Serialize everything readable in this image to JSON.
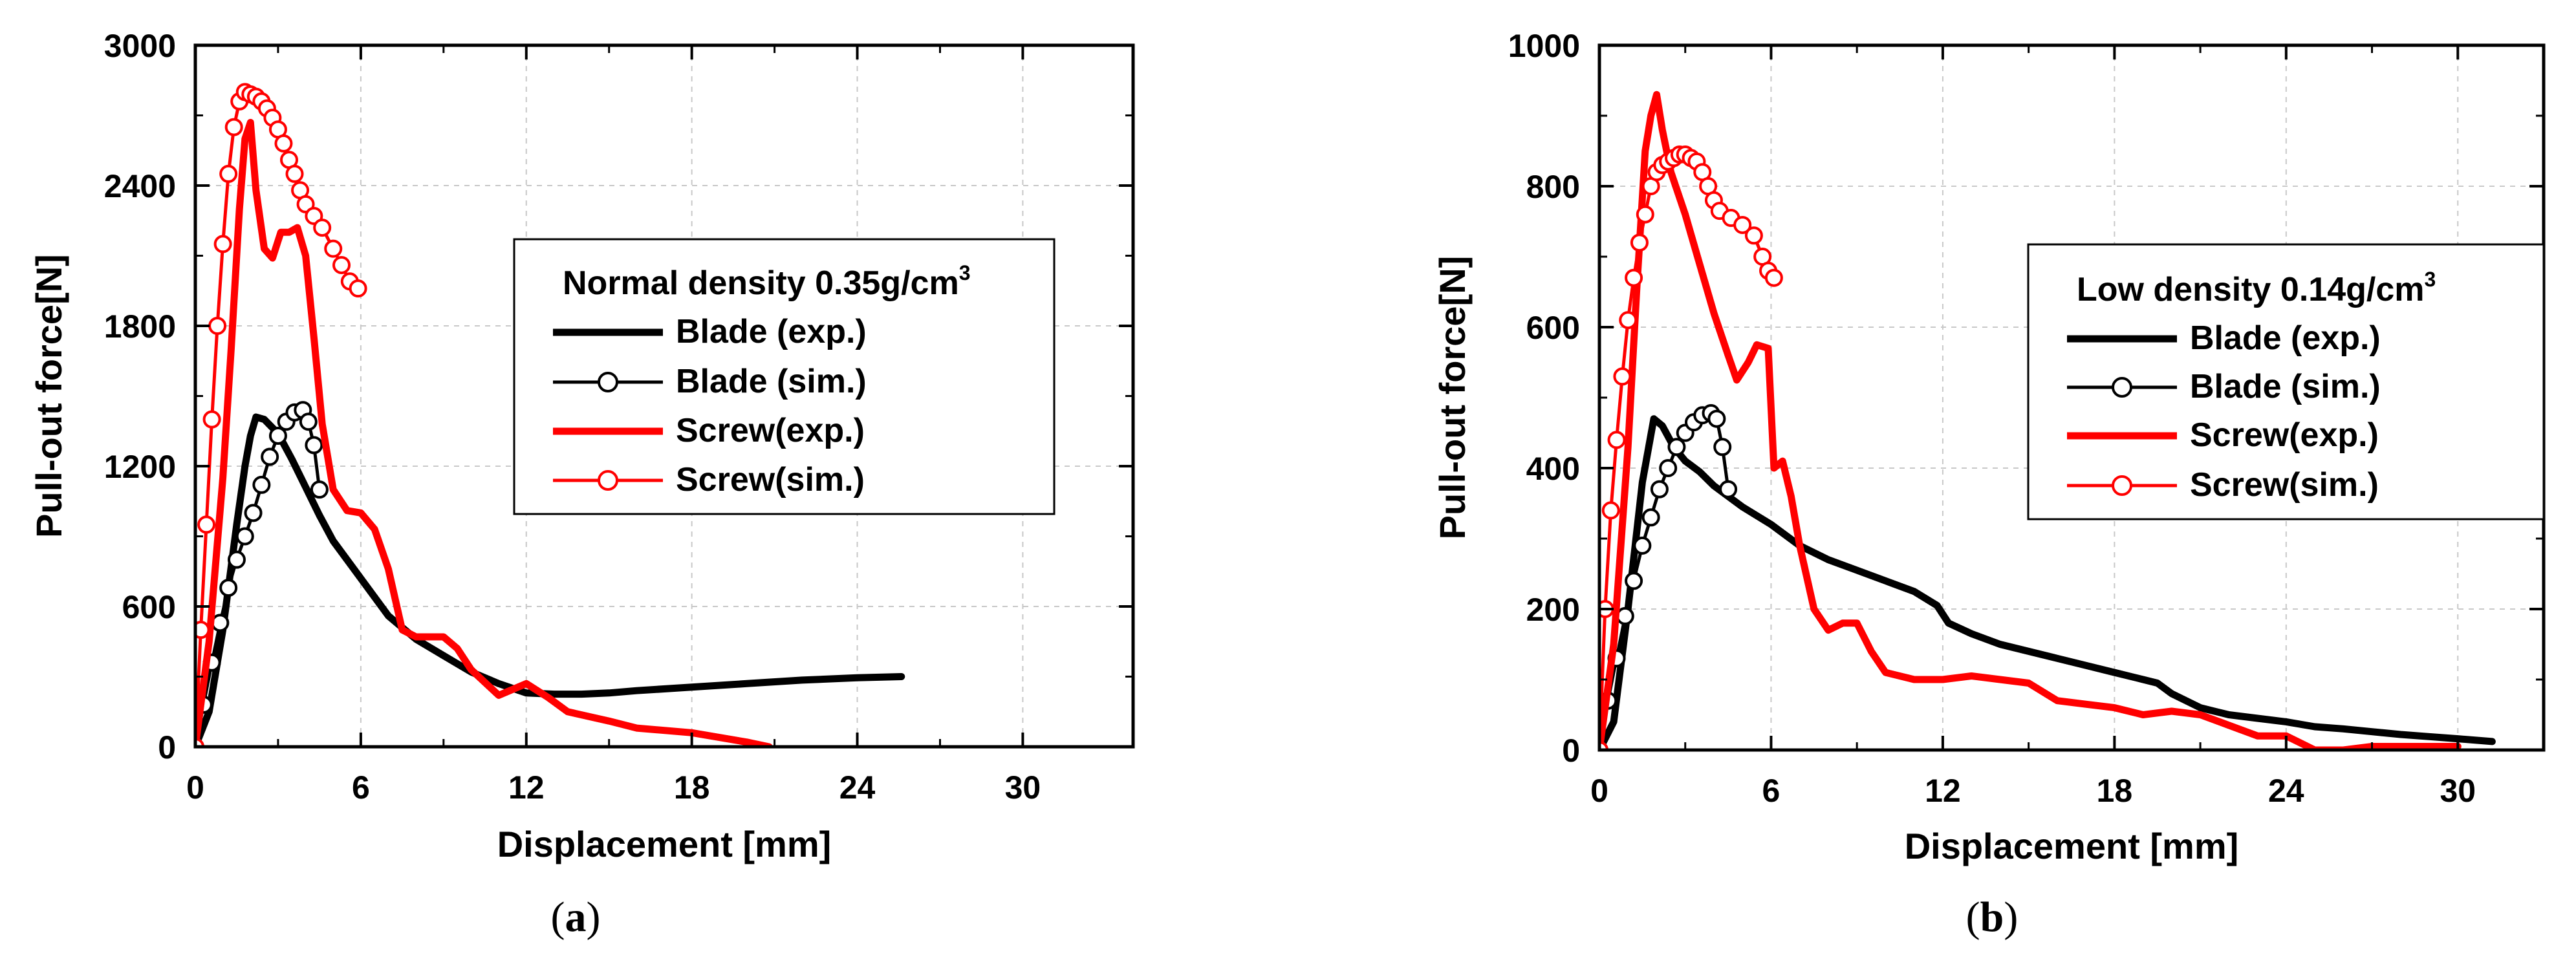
{
  "chart_data": [
    {
      "type": "line",
      "caption_letter": "a",
      "title": "Normal density 0.35g/cm",
      "title_superscript": "3",
      "xlabel": "Displacement [mm]",
      "ylabel": "Pull-out force[N]",
      "xlim": [
        0,
        34
      ],
      "ylim": [
        0,
        3000
      ],
      "xticks": [
        0,
        6,
        12,
        18,
        24,
        30
      ],
      "yticks": [
        0,
        600,
        1200,
        1800,
        2400,
        3000
      ],
      "grid": true,
      "legend_position": "upper-right",
      "series": [
        {
          "name": "Blade (exp.)",
          "color": "#000000",
          "marker": "none",
          "x": [
            0,
            0.5,
            1,
            1.5,
            1.8,
            2,
            2.2,
            2.5,
            3,
            3.5,
            4,
            4.5,
            5,
            6,
            7,
            8,
            9,
            10,
            11,
            12,
            13,
            14,
            15,
            16,
            18,
            20,
            22,
            24,
            25.6
          ],
          "y": [
            0,
            150,
            500,
            950,
            1200,
            1330,
            1410,
            1400,
            1340,
            1230,
            1110,
            990,
            880,
            720,
            560,
            460,
            390,
            320,
            270,
            230,
            225,
            225,
            230,
            240,
            255,
            270,
            285,
            295,
            300
          ]
        },
        {
          "name": "Blade (sim.)",
          "color": "#000000",
          "marker": "circle",
          "x": [
            0,
            0.3,
            0.6,
            0.9,
            1.2,
            1.5,
            1.8,
            2.1,
            2.4,
            2.7,
            3,
            3.3,
            3.6,
            3.9,
            4.1,
            4.3,
            4.5
          ],
          "y": [
            0,
            180,
            360,
            530,
            680,
            800,
            900,
            1000,
            1120,
            1240,
            1330,
            1390,
            1430,
            1440,
            1390,
            1290,
            1100
          ]
        },
        {
          "name": "Screw(exp.)",
          "color": "#ff0000",
          "marker": "none",
          "x": [
            0,
            0.5,
            1,
            1.3,
            1.6,
            1.8,
            2,
            2.2,
            2.5,
            2.8,
            3.1,
            3.4,
            3.7,
            4,
            4.3,
            4.6,
            5,
            5.5,
            6,
            6.5,
            7,
            7.5,
            8,
            9,
            9.5,
            10,
            11,
            12,
            12.8,
            13.5,
            15,
            16,
            18,
            20,
            20.8
          ],
          "y": [
            0,
            450,
            1150,
            1700,
            2300,
            2600,
            2670,
            2380,
            2130,
            2090,
            2200,
            2200,
            2220,
            2100,
            1750,
            1380,
            1100,
            1010,
            1000,
            930,
            760,
            500,
            470,
            470,
            420,
            330,
            220,
            270,
            210,
            150,
            110,
            80,
            60,
            20,
            0
          ]
        },
        {
          "name": "Screw(sim.)",
          "color": "#ff0000",
          "marker": "circle",
          "x": [
            0,
            0.2,
            0.4,
            0.6,
            0.8,
            1,
            1.2,
            1.4,
            1.6,
            1.8,
            2,
            2.2,
            2.4,
            2.6,
            2.8,
            3,
            3.2,
            3.4,
            3.6,
            3.8,
            4,
            4.3,
            4.6,
            5,
            5.3,
            5.6,
            5.9
          ],
          "y": [
            0,
            500,
            950,
            1400,
            1800,
            2150,
            2450,
            2650,
            2760,
            2800,
            2790,
            2780,
            2760,
            2730,
            2690,
            2640,
            2580,
            2510,
            2450,
            2380,
            2320,
            2270,
            2220,
            2130,
            2060,
            1990,
            1960
          ]
        }
      ]
    },
    {
      "type": "line",
      "caption_letter": "b",
      "title": "Low density 0.14g/cm",
      "title_superscript": "3",
      "xlabel": "Displacement [mm]",
      "ylabel": "Pull-out force[N]",
      "xlim": [
        0,
        33
      ],
      "ylim": [
        0,
        1000
      ],
      "xticks": [
        0,
        6,
        12,
        18,
        24,
        30
      ],
      "yticks": [
        0,
        200,
        400,
        600,
        800,
        1000
      ],
      "grid": true,
      "legend_position": "right",
      "series": [
        {
          "name": "Blade (exp.)",
          "color": "#000000",
          "marker": "none",
          "x": [
            0,
            0.5,
            1,
            1.5,
            1.9,
            2.2,
            2.6,
            3,
            3.5,
            4,
            5,
            6,
            7,
            8,
            9,
            10,
            11,
            11.8,
            12.2,
            13,
            14,
            15,
            16,
            17,
            18,
            19,
            19.5,
            20,
            21,
            22,
            23,
            24,
            25,
            26,
            27,
            28,
            29,
            30,
            31.2
          ],
          "y": [
            0,
            40,
            200,
            380,
            470,
            460,
            430,
            410,
            395,
            375,
            345,
            320,
            290,
            270,
            255,
            240,
            225,
            205,
            180,
            165,
            150,
            140,
            130,
            120,
            110,
            100,
            95,
            80,
            60,
            50,
            45,
            40,
            33,
            30,
            26,
            22,
            19,
            16,
            12
          ]
        },
        {
          "name": "Blade (sim.)",
          "color": "#000000",
          "marker": "circle",
          "x": [
            0,
            0.3,
            0.6,
            0.9,
            1.2,
            1.5,
            1.8,
            2.1,
            2.4,
            2.7,
            3,
            3.3,
            3.6,
            3.9,
            4.1,
            4.3,
            4.5
          ],
          "y": [
            0,
            70,
            130,
            190,
            240,
            290,
            330,
            370,
            400,
            430,
            450,
            465,
            475,
            478,
            470,
            430,
            370
          ]
        },
        {
          "name": "Screw(exp.)",
          "color": "#ff0000",
          "marker": "none",
          "x": [
            0,
            0.5,
            1,
            1.3,
            1.6,
            1.8,
            2,
            2.2,
            2.5,
            3,
            3.5,
            4,
            4.5,
            4.8,
            5.2,
            5.5,
            5.9,
            6.1,
            6.4,
            6.7,
            7,
            7.5,
            8,
            8.5,
            9,
            9.5,
            10,
            11,
            12,
            13,
            14,
            15,
            16,
            17,
            18,
            19,
            20,
            21,
            22,
            23,
            24,
            25,
            26,
            27,
            28,
            29,
            30
          ],
          "y": [
            0,
            150,
            430,
            650,
            850,
            900,
            930,
            880,
            820,
            760,
            690,
            620,
            560,
            525,
            550,
            575,
            570,
            400,
            410,
            360,
            290,
            200,
            170,
            180,
            180,
            140,
            110,
            100,
            100,
            105,
            100,
            95,
            70,
            65,
            60,
            50,
            55,
            50,
            35,
            20,
            20,
            0,
            0,
            5,
            5,
            5,
            5
          ]
        },
        {
          "name": "Screw(sim.)",
          "color": "#ff0000",
          "marker": "circle",
          "x": [
            0,
            0.2,
            0.4,
            0.6,
            0.8,
            1,
            1.2,
            1.4,
            1.6,
            1.8,
            2,
            2.2,
            2.4,
            2.6,
            2.8,
            3,
            3.2,
            3.4,
            3.6,
            3.8,
            4,
            4.2,
            4.6,
            5,
            5.4,
            5.7,
            5.9,
            6.1
          ],
          "y": [
            0,
            200,
            340,
            440,
            530,
            610,
            670,
            720,
            760,
            800,
            820,
            830,
            835,
            840,
            845,
            845,
            840,
            835,
            820,
            800,
            780,
            765,
            755,
            745,
            730,
            700,
            680,
            670
          ]
        }
      ]
    }
  ]
}
